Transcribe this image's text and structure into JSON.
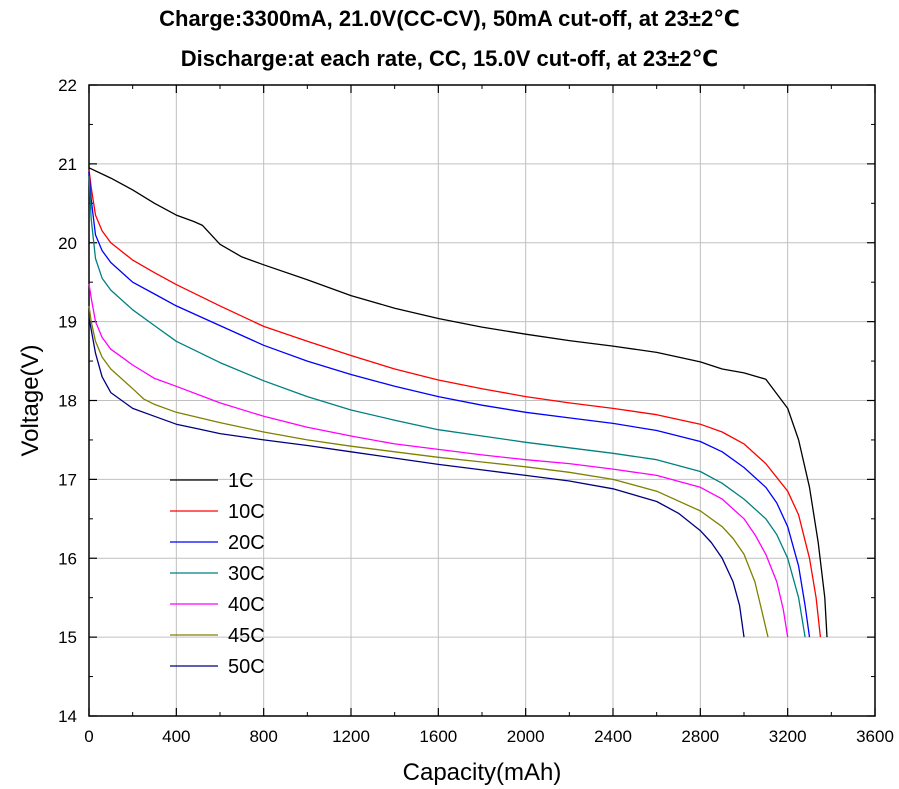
{
  "chart_data": {
    "type": "line",
    "title": "Charge:3300mA, 21.0V(CC-CV), 50mA cut-off, at 23±2℃",
    "subtitle": "Discharge:at each rate, CC, 15.0V cut-off, at 23±2℃",
    "xlabel": "Capacity(mAh)",
    "ylabel": "Voltage(V)",
    "xlim": [
      0,
      3600
    ],
    "ylim": [
      14,
      22
    ],
    "xticks": [
      0,
      400,
      800,
      1200,
      1600,
      2000,
      2400,
      2800,
      3200,
      3600
    ],
    "yticks": [
      14,
      15,
      16,
      17,
      18,
      19,
      20,
      21,
      22
    ],
    "grid": true,
    "legend_position": "lower-left",
    "series": [
      {
        "name": "1C",
        "color": "#000000",
        "x": [
          0,
          100,
          200,
          300,
          400,
          480,
          520,
          600,
          700,
          800,
          1000,
          1200,
          1400,
          1600,
          1800,
          2000,
          2200,
          2400,
          2600,
          2800,
          2900,
          3000,
          3100,
          3200,
          3250,
          3300,
          3340,
          3370,
          3380
        ],
        "y": [
          20.95,
          20.82,
          20.67,
          20.5,
          20.35,
          20.27,
          20.22,
          19.98,
          19.82,
          19.72,
          19.53,
          19.33,
          19.17,
          19.04,
          18.93,
          18.84,
          18.76,
          18.69,
          18.61,
          18.49,
          18.4,
          18.35,
          18.27,
          17.9,
          17.5,
          16.9,
          16.2,
          15.5,
          15.0
        ]
      },
      {
        "name": "10C",
        "color": "#ff0000",
        "x": [
          0,
          10,
          30,
          60,
          100,
          200,
          300,
          400,
          600,
          800,
          1000,
          1200,
          1400,
          1600,
          1800,
          2000,
          2200,
          2400,
          2600,
          2800,
          2900,
          3000,
          3100,
          3200,
          3250,
          3300,
          3330,
          3350
        ],
        "y": [
          20.93,
          20.7,
          20.35,
          20.15,
          20.0,
          19.78,
          19.62,
          19.47,
          19.2,
          18.94,
          18.75,
          18.57,
          18.4,
          18.26,
          18.15,
          18.05,
          17.97,
          17.9,
          17.82,
          17.7,
          17.6,
          17.45,
          17.2,
          16.85,
          16.55,
          16.0,
          15.5,
          15.0
        ]
      },
      {
        "name": "20C",
        "color": "#0000ff",
        "x": [
          0,
          10,
          30,
          60,
          100,
          200,
          300,
          400,
          600,
          800,
          1000,
          1200,
          1400,
          1600,
          1800,
          2000,
          2200,
          2400,
          2600,
          2800,
          2900,
          3000,
          3100,
          3150,
          3200,
          3250,
          3280,
          3300
        ],
        "y": [
          20.9,
          20.55,
          20.1,
          19.9,
          19.75,
          19.5,
          19.35,
          19.2,
          18.95,
          18.7,
          18.5,
          18.33,
          18.18,
          18.05,
          17.94,
          17.85,
          17.78,
          17.71,
          17.62,
          17.48,
          17.35,
          17.15,
          16.9,
          16.7,
          16.4,
          15.9,
          15.4,
          15.0
        ]
      },
      {
        "name": "30C",
        "color": "#008080",
        "x": [
          0,
          10,
          30,
          60,
          100,
          200,
          300,
          400,
          600,
          800,
          1000,
          1200,
          1400,
          1600,
          1800,
          2000,
          2200,
          2400,
          2600,
          2800,
          2900,
          3000,
          3100,
          3150,
          3200,
          3250,
          3280
        ],
        "y": [
          20.85,
          20.3,
          19.8,
          19.55,
          19.4,
          19.15,
          18.95,
          18.75,
          18.48,
          18.25,
          18.05,
          17.88,
          17.75,
          17.63,
          17.55,
          17.47,
          17.4,
          17.33,
          17.25,
          17.1,
          16.95,
          16.75,
          16.5,
          16.3,
          16.0,
          15.5,
          15.0
        ]
      },
      {
        "name": "40C",
        "color": "#ff00ff",
        "x": [
          0,
          10,
          30,
          60,
          100,
          200,
          300,
          400,
          600,
          800,
          1000,
          1200,
          1400,
          1600,
          1800,
          2000,
          2200,
          2400,
          2600,
          2800,
          2900,
          3000,
          3050,
          3100,
          3150,
          3180,
          3200
        ],
        "y": [
          19.48,
          19.3,
          19.0,
          18.8,
          18.65,
          18.45,
          18.28,
          18.18,
          17.97,
          17.8,
          17.66,
          17.55,
          17.45,
          17.38,
          17.31,
          17.25,
          17.2,
          17.13,
          17.05,
          16.9,
          16.75,
          16.5,
          16.3,
          16.05,
          15.7,
          15.35,
          15.0
        ]
      },
      {
        "name": "45C",
        "color": "#808000",
        "x": [
          0,
          10,
          30,
          60,
          100,
          200,
          250,
          300,
          400,
          600,
          800,
          1000,
          1200,
          1400,
          1600,
          1800,
          2000,
          2200,
          2400,
          2600,
          2800,
          2900,
          2950,
          3000,
          3050,
          3080,
          3110
        ],
        "y": [
          19.2,
          19.0,
          18.75,
          18.55,
          18.4,
          18.15,
          18.02,
          17.95,
          17.85,
          17.72,
          17.6,
          17.5,
          17.42,
          17.35,
          17.28,
          17.22,
          17.16,
          17.09,
          17.0,
          16.85,
          16.6,
          16.4,
          16.25,
          16.05,
          15.7,
          15.35,
          15.0
        ]
      },
      {
        "name": "50C",
        "color": "#000080",
        "x": [
          0,
          10,
          30,
          60,
          100,
          200,
          300,
          400,
          500,
          600,
          800,
          1000,
          1200,
          1400,
          1600,
          1800,
          2000,
          2200,
          2400,
          2600,
          2700,
          2800,
          2850,
          2900,
          2950,
          2980,
          3000
        ],
        "y": [
          19.05,
          18.9,
          18.6,
          18.3,
          18.1,
          17.9,
          17.8,
          17.7,
          17.64,
          17.58,
          17.5,
          17.43,
          17.35,
          17.27,
          17.19,
          17.12,
          17.05,
          16.98,
          16.88,
          16.72,
          16.57,
          16.35,
          16.2,
          16.0,
          15.7,
          15.4,
          15.0
        ]
      }
    ]
  }
}
